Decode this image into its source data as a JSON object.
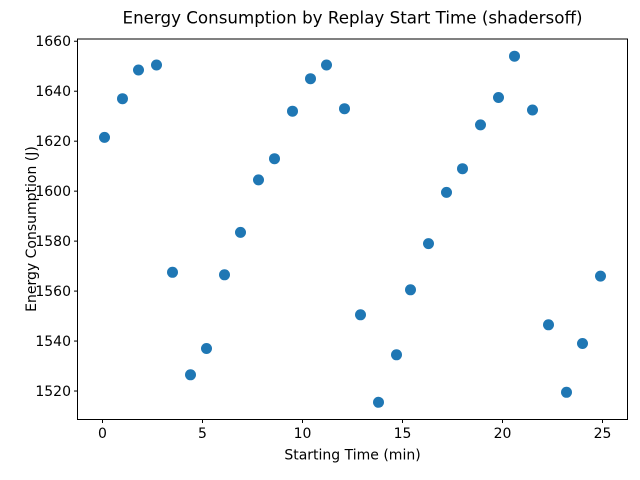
{
  "chart_data": {
    "type": "scatter",
    "title": "Energy Consumption by Replay Start Time (shadersoff)",
    "xlabel": "Starting Time (min)",
    "ylabel": "Energy Consumption (J)",
    "marker_color": "#1f77b4",
    "grid": false,
    "legend_position": "none",
    "xlim": [
      -1.25,
      26.25
    ],
    "ylim": [
      1508.6,
      1660.9
    ],
    "xticks": [
      0,
      5,
      10,
      15,
      20,
      25
    ],
    "yticks": [
      1520,
      1540,
      1560,
      1580,
      1600,
      1620,
      1640,
      1660
    ],
    "points": [
      [
        0.1,
        1621.5
      ],
      [
        1.0,
        1637.0
      ],
      [
        1.8,
        1648.5
      ],
      [
        2.7,
        1650.5
      ],
      [
        3.5,
        1567.5
      ],
      [
        4.4,
        1526.5
      ],
      [
        5.2,
        1537.0
      ],
      [
        6.1,
        1566.5
      ],
      [
        6.9,
        1583.5
      ],
      [
        7.8,
        1604.5
      ],
      [
        8.6,
        1613.0
      ],
      [
        9.5,
        1632.0
      ],
      [
        10.4,
        1645.0
      ],
      [
        11.2,
        1650.5
      ],
      [
        12.1,
        1633.0
      ],
      [
        12.9,
        1550.5
      ],
      [
        13.8,
        1515.5
      ],
      [
        14.7,
        1534.5
      ],
      [
        15.4,
        1560.5
      ],
      [
        16.3,
        1579.0
      ],
      [
        17.2,
        1599.5
      ],
      [
        18.0,
        1609.0
      ],
      [
        18.9,
        1626.5
      ],
      [
        19.8,
        1637.5
      ],
      [
        20.6,
        1654.0
      ],
      [
        21.5,
        1632.5
      ],
      [
        22.3,
        1546.5
      ],
      [
        23.2,
        1519.5
      ],
      [
        24.0,
        1539.0
      ],
      [
        24.9,
        1566.0
      ]
    ]
  }
}
